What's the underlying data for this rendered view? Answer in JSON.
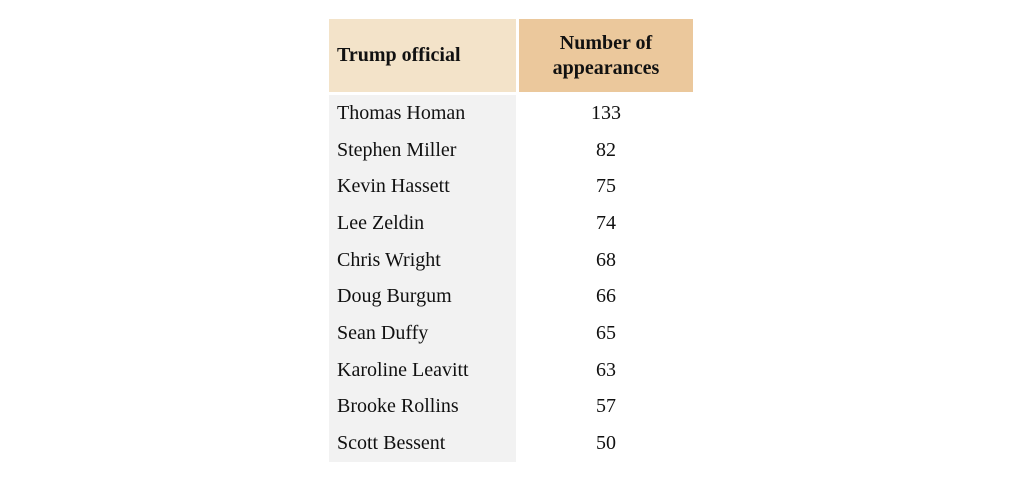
{
  "chart_data": {
    "type": "table",
    "columns": [
      "Trump official",
      "Number of appearances"
    ],
    "categories": [
      "Thomas Homan",
      "Stephen Miller",
      "Kevin Hassett",
      "Lee Zeldin",
      "Chris Wright",
      "Doug Burgum",
      "Sean Duffy",
      "Karoline Leavitt",
      "Brooke Rollins",
      "Scott Bessent"
    ],
    "values": [
      133,
      82,
      75,
      74,
      68,
      66,
      65,
      63,
      57,
      50
    ],
    "rows": [
      [
        "Thomas Homan",
        "133"
      ],
      [
        "Stephen Miller",
        "82"
      ],
      [
        "Kevin Hassett",
        "75"
      ],
      [
        "Lee Zeldin",
        "74"
      ],
      [
        "Chris Wright",
        "68"
      ],
      [
        "Doug Burgum",
        "66"
      ],
      [
        "Sean Duffy",
        "65"
      ],
      [
        "Karoline Leavitt",
        "63"
      ],
      [
        "Brooke Rollins",
        "57"
      ],
      [
        "Scott Bessent",
        "50"
      ]
    ]
  },
  "colors": {
    "header_col1_bg": "#f3e3c9",
    "header_col2_bg": "#ebc89c",
    "body_col1_bg": "#f2f2f2",
    "body_col2_bg": "#ffffff",
    "text": "#111111"
  }
}
